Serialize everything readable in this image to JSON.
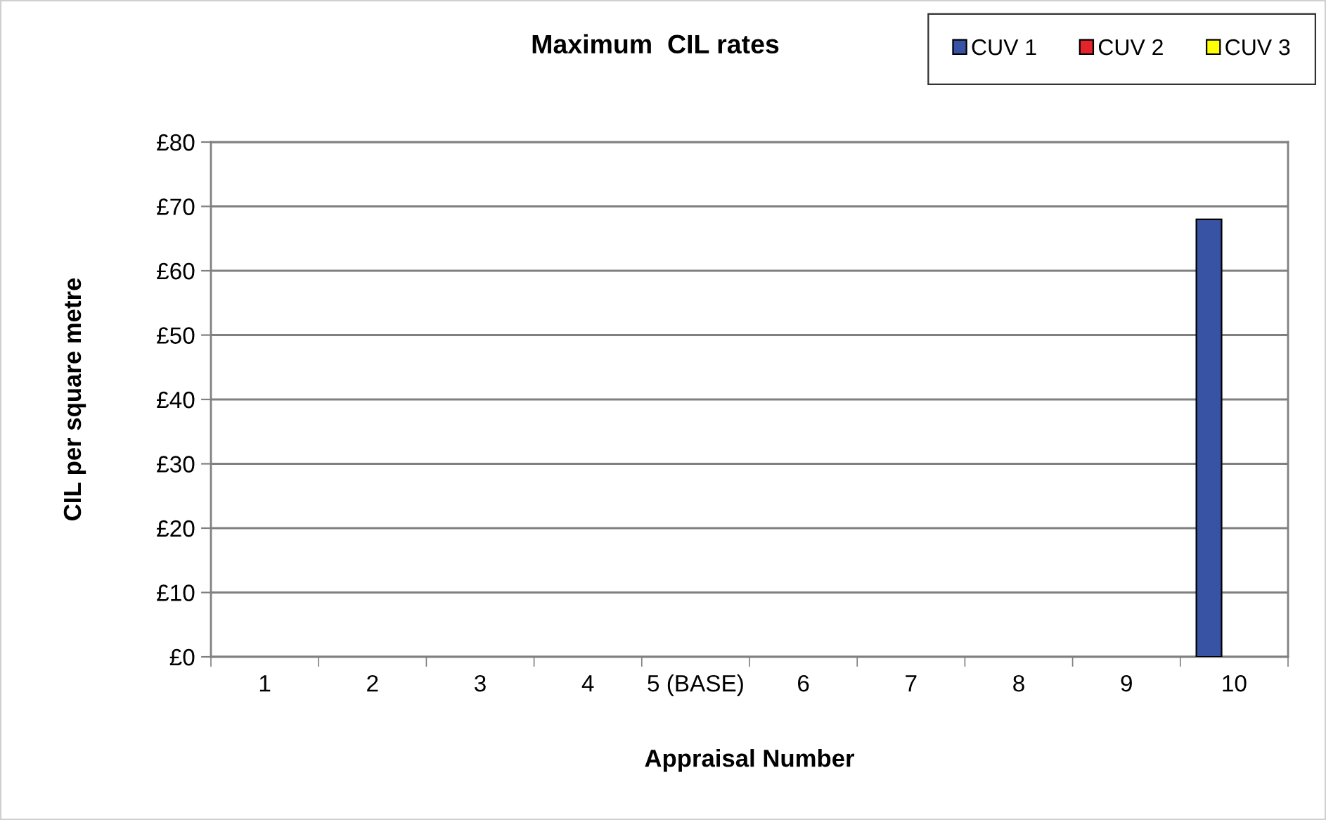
{
  "chart_data": {
    "type": "bar",
    "title": "Maximum  CIL rates",
    "xlabel": "Appraisal Number",
    "ylabel": "CIL per square metre",
    "categories": [
      "1",
      "2",
      "3",
      "4",
      "5 (BASE)",
      "6",
      "7",
      "8",
      "9",
      "10"
    ],
    "series": [
      {
        "name": "CUV 1",
        "color": "#3953a4",
        "values": [
          null,
          null,
          null,
          null,
          null,
          null,
          null,
          null,
          null,
          68
        ]
      },
      {
        "name": "CUV 2",
        "color": "#e3242b",
        "values": [
          null,
          null,
          null,
          null,
          null,
          null,
          null,
          null,
          null,
          null
        ]
      },
      {
        "name": "CUV 3",
        "color": "#ffff00",
        "values": [
          null,
          null,
          null,
          null,
          null,
          null,
          null,
          null,
          null,
          null
        ]
      }
    ],
    "ylim": [
      0,
      80
    ],
    "yticks": [
      {
        "value": 0,
        "label": "£0"
      },
      {
        "value": 10,
        "label": "£10"
      },
      {
        "value": 20,
        "label": "£20"
      },
      {
        "value": 30,
        "label": "£30"
      },
      {
        "value": 40,
        "label": "£40"
      },
      {
        "value": 50,
        "label": "£50"
      },
      {
        "value": 60,
        "label": "£60"
      },
      {
        "value": 70,
        "label": "£70"
      },
      {
        "value": 80,
        "label": "£80"
      }
    ],
    "grid": "y",
    "legend": "top right"
  }
}
